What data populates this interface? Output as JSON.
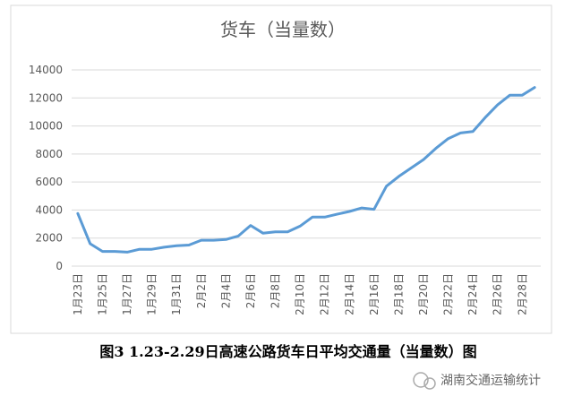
{
  "chart_data": {
    "type": "line",
    "title": "货车（当量数）",
    "categories": [
      "1月23日",
      null,
      "1月25日",
      null,
      "1月27日",
      null,
      "1月29日",
      null,
      "1月31日",
      null,
      "2月2日",
      null,
      "2月4日",
      null,
      "2月6日",
      null,
      "2月8日",
      null,
      "2月10日",
      null,
      "2月12日",
      null,
      "2月14日",
      null,
      "2月16日",
      null,
      "2月18日",
      null,
      "2月20日",
      null,
      "2月22日",
      null,
      "2月24日",
      null,
      "2月26日",
      null,
      "2月28日",
      null
    ],
    "values": [
      3750,
      1600,
      1050,
      1050,
      1000,
      1200,
      1200,
      1350,
      1450,
      1500,
      1850,
      1850,
      1900,
      2150,
      2900,
      2350,
      2450,
      2450,
      2850,
      3500,
      3500,
      3700,
      3900,
      4150,
      4050,
      5700,
      6400,
      7000,
      7600,
      8400,
      9100,
      9500,
      9600,
      10600,
      11500,
      12200,
      12200,
      12750
    ],
    "color": "#5b9bd5",
    "ylim": [
      0,
      14000
    ],
    "yticks": [
      0,
      2000,
      4000,
      6000,
      8000,
      10000,
      12000,
      14000
    ],
    "grid": true
  },
  "caption": "图3 1.23-2.29日高速公路货车日平均交通量（当量数）图",
  "watermark": "湖南交通运输统计"
}
